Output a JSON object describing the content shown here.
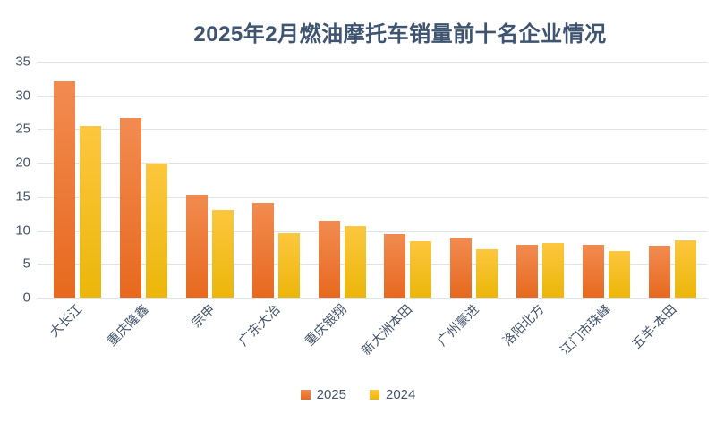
{
  "page": {
    "background": "#FFFFFF"
  },
  "colors": {
    "title_text": "#3E5470",
    "axis_text": "#44546A",
    "gridline": "#DFE3EA"
  },
  "chart_data": {
    "type": "bar",
    "title": "2025年2月燃油摩托车销量前十名企业情况",
    "xlabel": "",
    "ylabel": "",
    "categories": [
      "大长江",
      "重庆隆鑫",
      "宗申",
      "广东大冶",
      "重庆银翔",
      "新大洲本田",
      "广州豪进",
      "洛阳北方",
      "江门市珠峰",
      "五羊-本田"
    ],
    "series": [
      {
        "name": "2025",
        "color_top": "#F28B50",
        "color_bottom": "#E7691F",
        "values": [
          32.1,
          26.6,
          15.3,
          14.1,
          11.4,
          9.4,
          8.9,
          7.8,
          7.8,
          7.7
        ]
      },
      {
        "name": "2024",
        "color_top": "#FCC73E",
        "color_bottom": "#ECB60A",
        "values": [
          25.4,
          19.9,
          13.0,
          9.6,
          10.6,
          8.3,
          7.2,
          8.1,
          6.9,
          8.5
        ]
      }
    ],
    "ylim": [
      0,
      35
    ],
    "yticks": [
      0,
      5,
      10,
      15,
      20,
      25,
      30,
      35
    ],
    "grid": true,
    "legend_position": "bottom"
  }
}
